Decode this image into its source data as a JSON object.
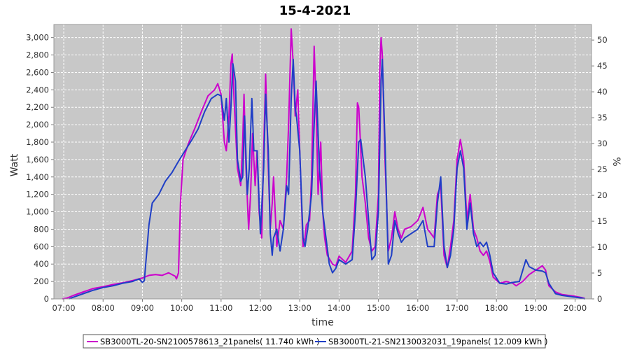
{
  "chart_data": {
    "type": "line",
    "title": "15-4-2021",
    "xlabel": "time",
    "ylabel": "Watt",
    "y2label": "%",
    "xlim": [
      "06:45",
      "20:25"
    ],
    "ylim": [
      0,
      3150
    ],
    "y2lim": [
      0,
      53
    ],
    "x_ticks": [
      "07:00",
      "08:00",
      "09:00",
      "10:00",
      "11:00",
      "12:00",
      "13:00",
      "14:00",
      "15:00",
      "16:00",
      "17:00",
      "18:00",
      "19:00",
      "20:00"
    ],
    "y_ticks": [
      "0",
      "200",
      "400",
      "600",
      "800",
      "1,000",
      "1,200",
      "1,400",
      "1,600",
      "1,800",
      "2,000",
      "2,200",
      "2,400",
      "2,600",
      "2,800",
      "3,000"
    ],
    "y2_ticks": [
      "0",
      "5",
      "10",
      "15",
      "20",
      "25",
      "30",
      "35",
      "40",
      "45",
      "50"
    ],
    "grid": true,
    "legend_position": "bottom",
    "colors": {
      "plot_background": "#c8c8c8",
      "grid": "#ffffff",
      "series1": "#cc00cc",
      "series2": "#1f3fc6"
    },
    "series": [
      {
        "name": "SB3000TL-20-SN2100578613_21panels( 11.740 kWh )",
        "color": "#cc00cc",
        "points": [
          [
            "06:58",
            0
          ],
          [
            "07:05",
            10
          ],
          [
            "07:15",
            40
          ],
          [
            "07:30",
            80
          ],
          [
            "07:45",
            120
          ],
          [
            "08:00",
            140
          ],
          [
            "08:15",
            165
          ],
          [
            "08:30",
            185
          ],
          [
            "08:45",
            210
          ],
          [
            "09:00",
            240
          ],
          [
            "09:10",
            270
          ],
          [
            "09:20",
            280
          ],
          [
            "09:30",
            270
          ],
          [
            "09:40",
            300
          ],
          [
            "09:50",
            260
          ],
          [
            "09:52",
            230
          ],
          [
            "09:55",
            300
          ],
          [
            "09:58",
            1100
          ],
          [
            "10:02",
            1600
          ],
          [
            "10:10",
            1780
          ],
          [
            "10:20",
            1960
          ],
          [
            "10:30",
            2150
          ],
          [
            "10:40",
            2330
          ],
          [
            "10:50",
            2400
          ],
          [
            "10:55",
            2470
          ],
          [
            "11:00",
            2350
          ],
          [
            "11:05",
            1800
          ],
          [
            "11:08",
            1700
          ],
          [
            "11:12",
            2100
          ],
          [
            "11:15",
            2700
          ],
          [
            "11:17",
            2810
          ],
          [
            "11:20",
            2250
          ],
          [
            "11:25",
            1500
          ],
          [
            "11:30",
            1300
          ],
          [
            "11:33",
            1800
          ],
          [
            "11:35",
            2350
          ],
          [
            "11:38",
            1500
          ],
          [
            "11:42",
            800
          ],
          [
            "11:45",
            1200
          ],
          [
            "11:48",
            1900
          ],
          [
            "11:52",
            1300
          ],
          [
            "11:55",
            1700
          ],
          [
            "11:58",
            1000
          ],
          [
            "12:02",
            700
          ],
          [
            "12:05",
            1700
          ],
          [
            "12:08",
            2580
          ],
          [
            "12:12",
            1500
          ],
          [
            "12:15",
            800
          ],
          [
            "12:18",
            1100
          ],
          [
            "12:20",
            1400
          ],
          [
            "12:25",
            600
          ],
          [
            "12:30",
            900
          ],
          [
            "12:35",
            800
          ],
          [
            "12:40",
            1400
          ],
          [
            "12:43",
            2000
          ],
          [
            "12:47",
            3100
          ],
          [
            "12:50",
            2700
          ],
          [
            "12:53",
            2100
          ],
          [
            "12:57",
            2400
          ],
          [
            "13:00",
            1700
          ],
          [
            "13:05",
            600
          ],
          [
            "13:08",
            700
          ],
          [
            "13:10",
            850
          ],
          [
            "13:15",
            900
          ],
          [
            "13:18",
            1400
          ],
          [
            "13:22",
            2900
          ],
          [
            "13:25",
            2200
          ],
          [
            "13:28",
            1200
          ],
          [
            "13:32",
            1800
          ],
          [
            "13:35",
            1000
          ],
          [
            "13:38",
            700
          ],
          [
            "13:42",
            500
          ],
          [
            "13:50",
            400
          ],
          [
            "13:55",
            380
          ],
          [
            "14:00",
            490
          ],
          [
            "14:10",
            420
          ],
          [
            "14:20",
            550
          ],
          [
            "14:25",
            1200
          ],
          [
            "14:28",
            2250
          ],
          [
            "14:30",
            2200
          ],
          [
            "14:35",
            1400
          ],
          [
            "14:40",
            1100
          ],
          [
            "14:45",
            700
          ],
          [
            "14:50",
            550
          ],
          [
            "14:55",
            600
          ],
          [
            "15:00",
            1200
          ],
          [
            "15:02",
            2600
          ],
          [
            "15:04",
            3000
          ],
          [
            "15:06",
            2800
          ],
          [
            "15:10",
            1600
          ],
          [
            "15:15",
            550
          ],
          [
            "15:20",
            700
          ],
          [
            "15:25",
            1000
          ],
          [
            "15:30",
            800
          ],
          [
            "15:35",
            700
          ],
          [
            "15:40",
            800
          ],
          [
            "15:50",
            830
          ],
          [
            "16:00",
            900
          ],
          [
            "16:08",
            1050
          ],
          [
            "16:15",
            800
          ],
          [
            "16:25",
            700
          ],
          [
            "16:30",
            1200
          ],
          [
            "16:35",
            1300
          ],
          [
            "16:40",
            500
          ],
          [
            "16:45",
            360
          ],
          [
            "16:50",
            600
          ],
          [
            "16:55",
            900
          ],
          [
            "17:00",
            1600
          ],
          [
            "17:05",
            1830
          ],
          [
            "17:10",
            1600
          ],
          [
            "17:15",
            900
          ],
          [
            "17:20",
            1200
          ],
          [
            "17:25",
            800
          ],
          [
            "17:30",
            700
          ],
          [
            "17:35",
            550
          ],
          [
            "17:40",
            500
          ],
          [
            "17:45",
            550
          ],
          [
            "17:50",
            430
          ],
          [
            "17:55",
            250
          ],
          [
            "18:05",
            180
          ],
          [
            "18:15",
            200
          ],
          [
            "18:25",
            180
          ],
          [
            "18:30",
            150
          ],
          [
            "18:40",
            200
          ],
          [
            "18:50",
            280
          ],
          [
            "19:00",
            330
          ],
          [
            "19:10",
            380
          ],
          [
            "19:15",
            330
          ],
          [
            "19:20",
            150
          ],
          [
            "19:30",
            80
          ],
          [
            "19:40",
            50
          ],
          [
            "19:50",
            40
          ],
          [
            "20:00",
            30
          ],
          [
            "20:10",
            15
          ],
          [
            "20:15",
            5
          ]
        ]
      },
      {
        "name": "SB3000TL-21-SN2130032031_19panels( 12.009 kWh )",
        "color": "#1f3fc6",
        "points": [
          [
            "07:08",
            0
          ],
          [
            "07:15",
            20
          ],
          [
            "07:30",
            60
          ],
          [
            "07:45",
            100
          ],
          [
            "08:00",
            130
          ],
          [
            "08:15",
            150
          ],
          [
            "08:30",
            180
          ],
          [
            "08:45",
            200
          ],
          [
            "08:55",
            230
          ],
          [
            "09:00",
            190
          ],
          [
            "09:03",
            210
          ],
          [
            "09:10",
            850
          ],
          [
            "09:15",
            1100
          ],
          [
            "09:25",
            1200
          ],
          [
            "09:35",
            1350
          ],
          [
            "09:45",
            1450
          ],
          [
            "09:55",
            1580
          ],
          [
            "10:05",
            1700
          ],
          [
            "10:15",
            1820
          ],
          [
            "10:25",
            1950
          ],
          [
            "10:35",
            2150
          ],
          [
            "10:45",
            2300
          ],
          [
            "10:55",
            2350
          ],
          [
            "11:00",
            2330
          ],
          [
            "11:05",
            2050
          ],
          [
            "11:08",
            2300
          ],
          [
            "11:12",
            1800
          ],
          [
            "11:15",
            2200
          ],
          [
            "11:18",
            2700
          ],
          [
            "11:22",
            2500
          ],
          [
            "11:25",
            1600
          ],
          [
            "11:30",
            1350
          ],
          [
            "11:33",
            1400
          ],
          [
            "11:36",
            2100
          ],
          [
            "11:40",
            1200
          ],
          [
            "11:43",
            1500
          ],
          [
            "11:47",
            2300
          ],
          [
            "11:50",
            1700
          ],
          [
            "11:55",
            1700
          ],
          [
            "12:00",
            750
          ],
          [
            "12:05",
            1500
          ],
          [
            "12:08",
            2350
          ],
          [
            "12:12",
            1700
          ],
          [
            "12:15",
            750
          ],
          [
            "12:18",
            500
          ],
          [
            "12:20",
            700
          ],
          [
            "12:25",
            800
          ],
          [
            "12:30",
            550
          ],
          [
            "12:35",
            800
          ],
          [
            "12:40",
            1300
          ],
          [
            "12:43",
            1200
          ],
          [
            "12:47",
            2300
          ],
          [
            "12:50",
            2750
          ],
          [
            "12:53",
            2200
          ],
          [
            "12:55",
            2100
          ],
          [
            "13:00",
            1700
          ],
          [
            "13:05",
            700
          ],
          [
            "13:08",
            600
          ],
          [
            "13:12",
            800
          ],
          [
            "13:18",
            1200
          ],
          [
            "13:22",
            2000
          ],
          [
            "13:25",
            2500
          ],
          [
            "13:30",
            1500
          ],
          [
            "13:35",
            1000
          ],
          [
            "13:40",
            700
          ],
          [
            "13:45",
            400
          ],
          [
            "13:50",
            300
          ],
          [
            "13:55",
            350
          ],
          [
            "14:00",
            450
          ],
          [
            "14:10",
            400
          ],
          [
            "14:20",
            450
          ],
          [
            "14:25",
            1000
          ],
          [
            "14:30",
            1800
          ],
          [
            "14:33",
            1830
          ],
          [
            "14:40",
            1400
          ],
          [
            "14:45",
            900
          ],
          [
            "14:50",
            450
          ],
          [
            "14:55",
            500
          ],
          [
            "15:00",
            1000
          ],
          [
            "15:04",
            2500
          ],
          [
            "15:06",
            2750
          ],
          [
            "15:10",
            1800
          ],
          [
            "15:15",
            400
          ],
          [
            "15:20",
            500
          ],
          [
            "15:25",
            900
          ],
          [
            "15:30",
            750
          ],
          [
            "15:35",
            650
          ],
          [
            "15:40",
            700
          ],
          [
            "15:50",
            750
          ],
          [
            "16:00",
            800
          ],
          [
            "16:08",
            900
          ],
          [
            "16:15",
            600
          ],
          [
            "16:25",
            600
          ],
          [
            "16:30",
            1100
          ],
          [
            "16:35",
            1400
          ],
          [
            "16:40",
            600
          ],
          [
            "16:45",
            360
          ],
          [
            "16:50",
            500
          ],
          [
            "16:55",
            800
          ],
          [
            "17:00",
            1500
          ],
          [
            "17:05",
            1700
          ],
          [
            "17:10",
            1500
          ],
          [
            "17:15",
            800
          ],
          [
            "17:20",
            1100
          ],
          [
            "17:25",
            750
          ],
          [
            "17:30",
            600
          ],
          [
            "17:35",
            650
          ],
          [
            "17:40",
            600
          ],
          [
            "17:45",
            650
          ],
          [
            "17:50",
            500
          ],
          [
            "17:55",
            300
          ],
          [
            "18:05",
            180
          ],
          [
            "18:15",
            170
          ],
          [
            "18:25",
            190
          ],
          [
            "18:35",
            200
          ],
          [
            "18:45",
            450
          ],
          [
            "18:50",
            370
          ],
          [
            "19:00",
            330
          ],
          [
            "19:10",
            320
          ],
          [
            "19:15",
            300
          ],
          [
            "19:20",
            180
          ],
          [
            "19:30",
            60
          ],
          [
            "19:40",
            40
          ],
          [
            "19:50",
            30
          ],
          [
            "20:00",
            20
          ],
          [
            "20:10",
            10
          ],
          [
            "20:15",
            0
          ]
        ]
      }
    ]
  }
}
